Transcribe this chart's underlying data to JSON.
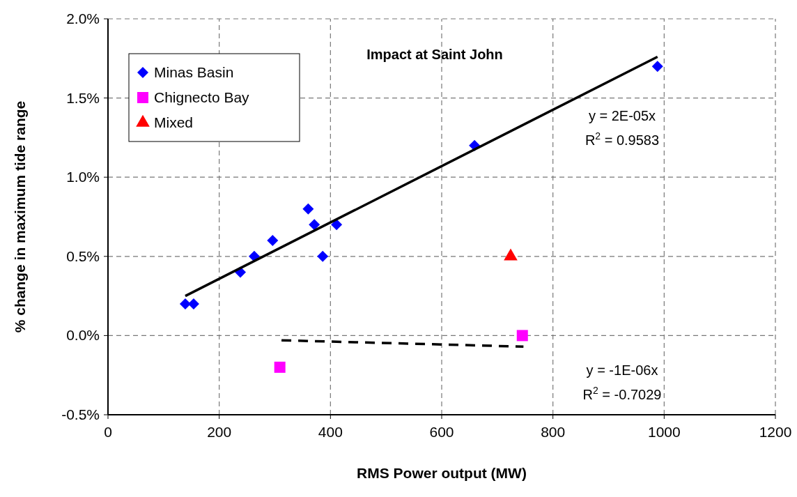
{
  "chart_data": {
    "type": "scatter",
    "title": "Impact at Saint John",
    "xlabel": "RMS Power output (MW)",
    "ylabel": "% change in maximum tide range",
    "xlim": [
      0,
      1200
    ],
    "xticks": [
      0,
      200,
      400,
      600,
      800,
      1000,
      1200
    ],
    "ylim": [
      -0.5,
      2.0
    ],
    "yticks": [
      {
        "value": -0.5,
        "label": "-0.5%"
      },
      {
        "value": 0,
        "label": "0.0%"
      },
      {
        "value": 0.5,
        "label": "0.5%"
      },
      {
        "value": 1.0,
        "label": "1.0%"
      },
      {
        "value": 1.5,
        "label": "1.5%"
      },
      {
        "value": 2.0,
        "label": "2.0%"
      }
    ],
    "grid": true,
    "legend": "top left",
    "series": [
      {
        "name": "Minas Basin",
        "color": "#0000ff",
        "marker": "diamond",
        "x": [
          139,
          154,
          238,
          263,
          296,
          360,
          371,
          386,
          411,
          659,
          988
        ],
        "values": [
          0.2,
          0.2,
          0.4,
          0.5,
          0.6,
          0.8,
          0.7,
          0.5,
          0.7,
          1.2,
          1.7
        ]
      },
      {
        "name": "Chignecto Bay",
        "color": "#ff00ff",
        "marker": "square",
        "x": [
          309,
          745
        ],
        "values": [
          -0.2,
          0.0
        ]
      },
      {
        "name": "Mixed",
        "color": "#ff0000",
        "marker": "triangle",
        "x": [
          724
        ],
        "values": [
          0.5
        ]
      },
      {
        "type": "line",
        "color": "#000000",
        "line_style": "solid",
        "x": [
          139,
          988
        ],
        "values": [
          0.25,
          1.76
        ]
      },
      {
        "type": "line",
        "color": "#000000",
        "line_style": "dashed",
        "x": [
          312,
          747
        ],
        "values": [
          -0.03,
          -0.07
        ]
      }
    ],
    "annotations": [
      "y = 2E-05x",
      "R$^{2}$ = 0.9583",
      "y = -1E-06x",
      "R$^{2}$ = -0.7029"
    ]
  }
}
